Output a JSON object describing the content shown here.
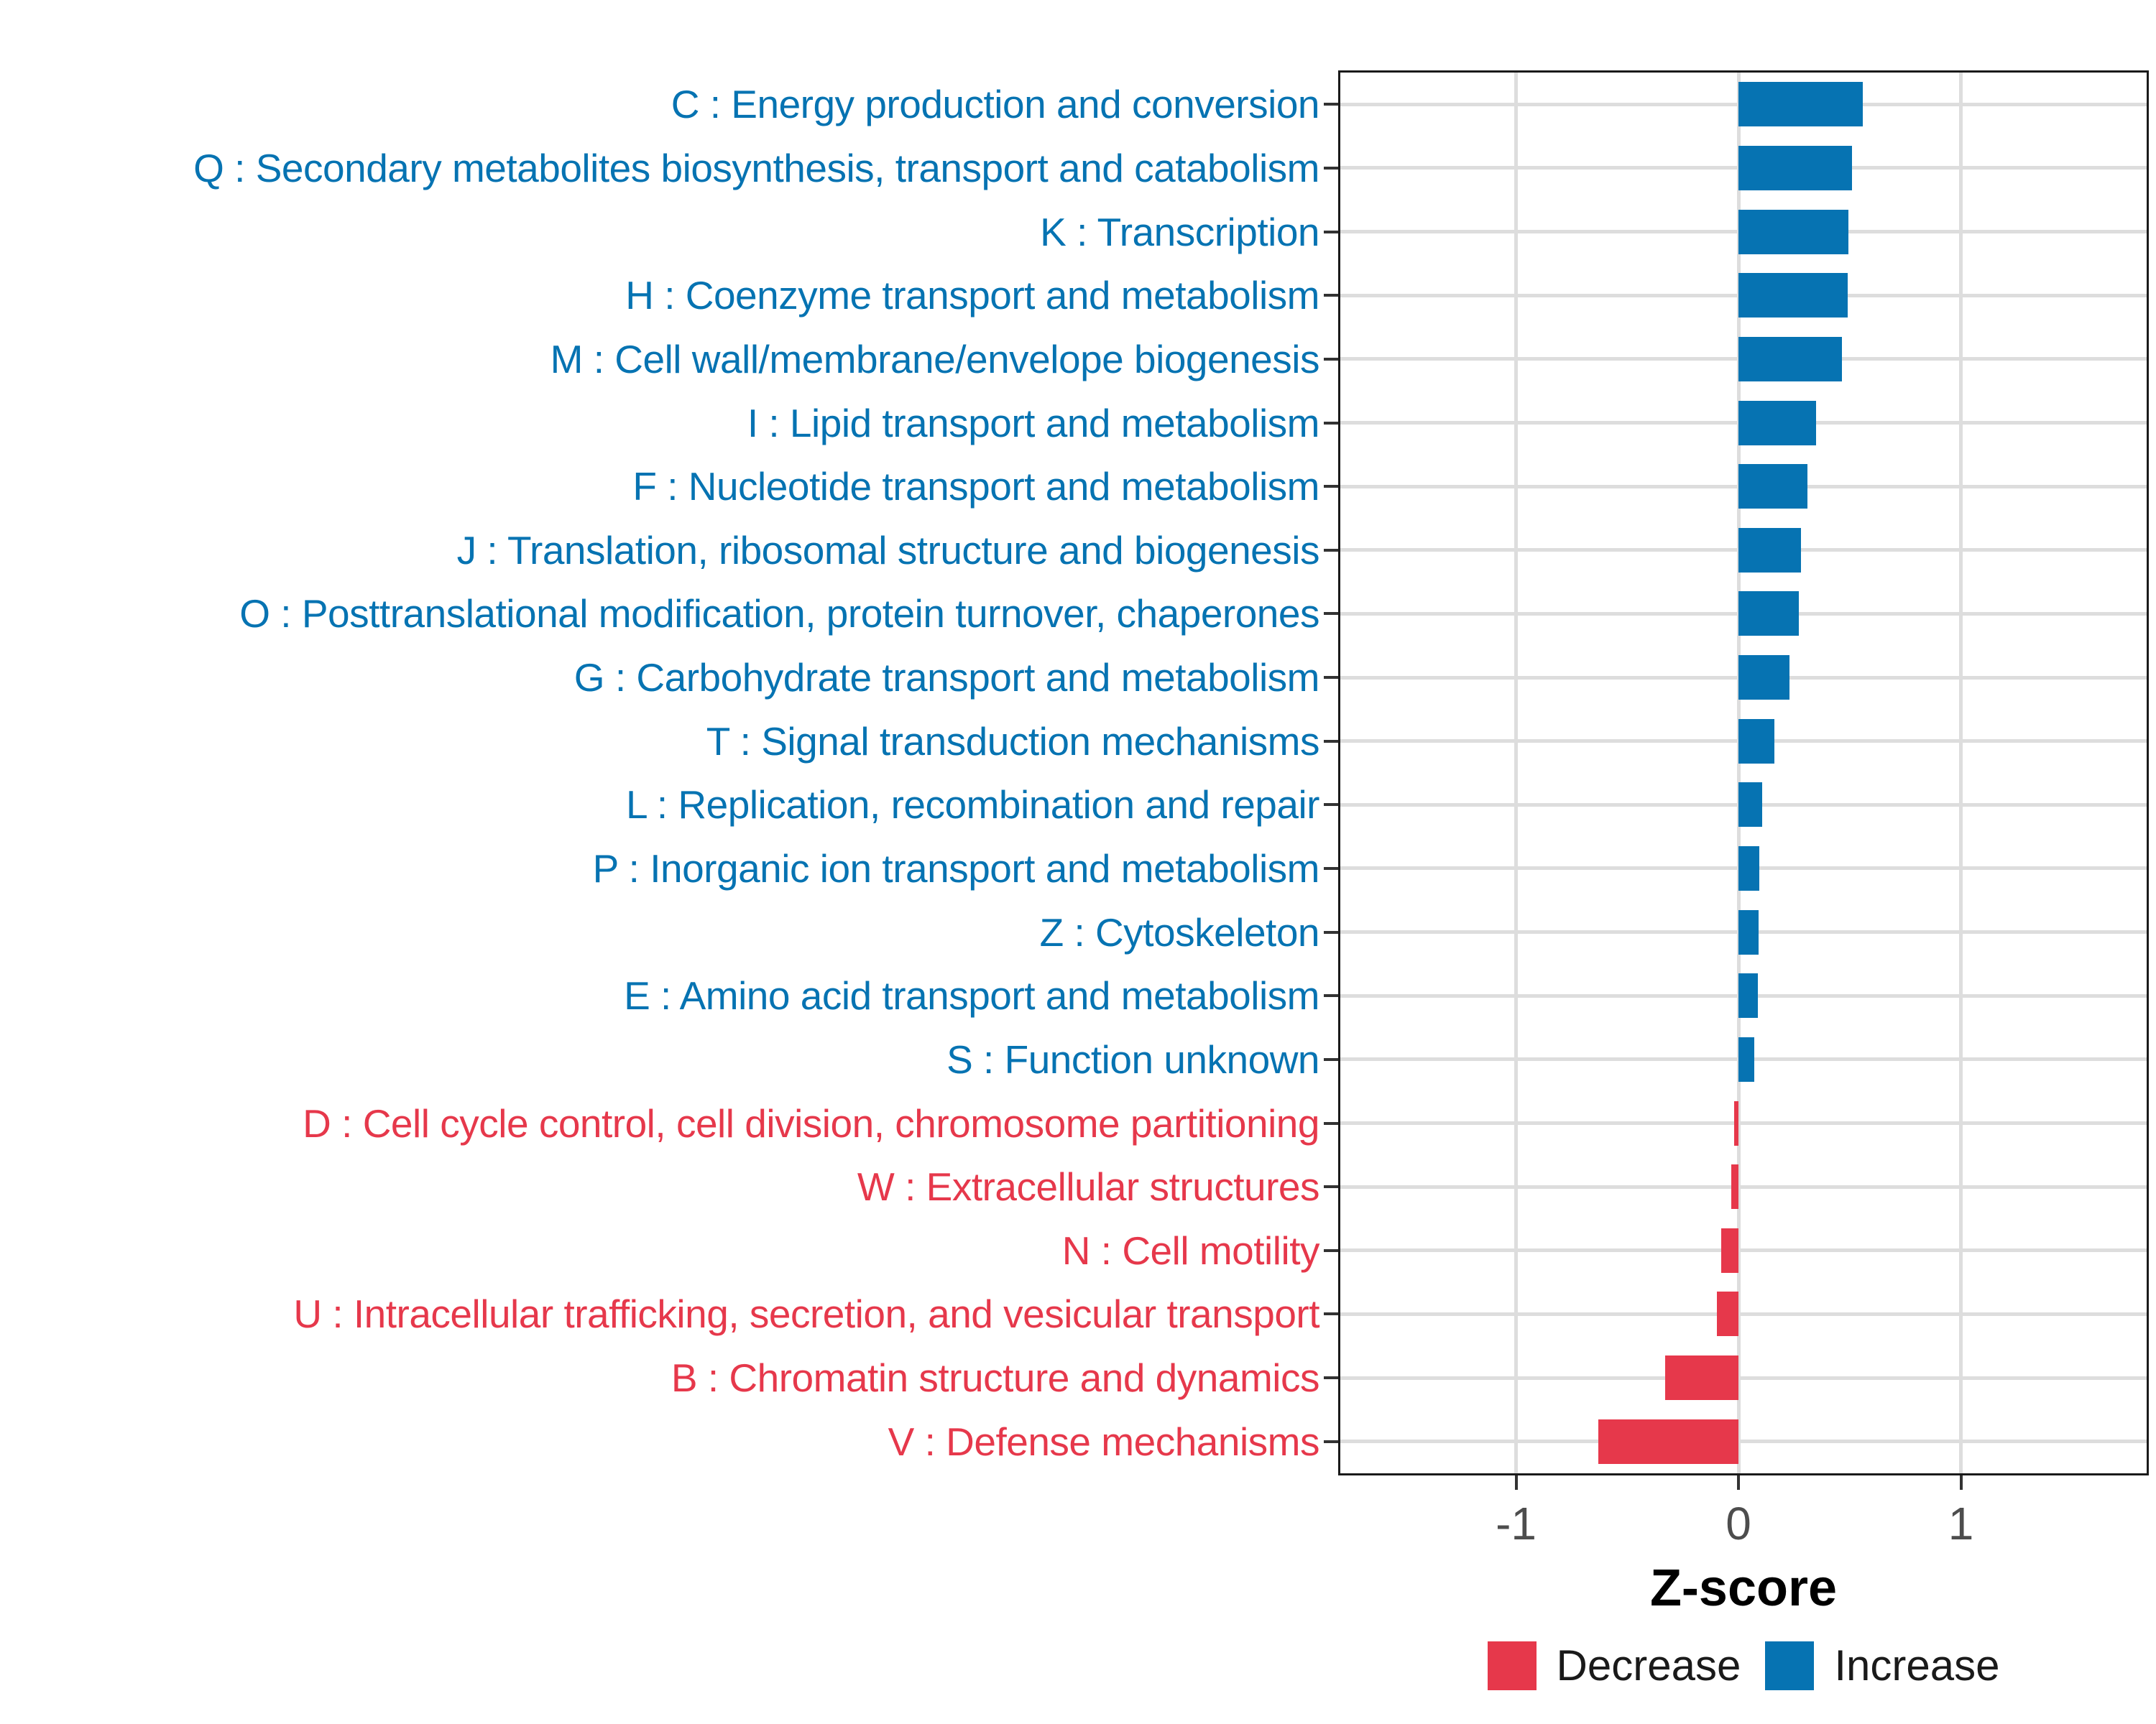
{
  "chart_data": {
    "type": "bar",
    "orientation": "horizontal",
    "title": "",
    "xlabel": "Z-score",
    "ylabel": "",
    "xlim": [
      -1.79,
      1.835
    ],
    "grid": "major",
    "legend_position": "bottom",
    "x_ticks": [
      {
        "label": "-1",
        "value": -1
      },
      {
        "label": "0",
        "value": 0
      },
      {
        "label": "1",
        "value": 1
      }
    ],
    "bars": [
      {
        "label": "C : Energy production and conversion",
        "value": 0.56,
        "group": "Increase"
      },
      {
        "label": "Q : Secondary metabolites biosynthesis, transport and catabolism",
        "value": 0.51,
        "group": "Increase"
      },
      {
        "label": "K : Transcription",
        "value": 0.495,
        "group": "Increase"
      },
      {
        "label": "H : Coenzyme transport and metabolism",
        "value": 0.49,
        "group": "Increase"
      },
      {
        "label": "M : Cell wall/membrane/envelope biogenesis",
        "value": 0.465,
        "group": "Increase"
      },
      {
        "label": "I : Lipid transport and metabolism",
        "value": 0.35,
        "group": "Increase"
      },
      {
        "label": "F : Nucleotide transport and metabolism",
        "value": 0.31,
        "group": "Increase"
      },
      {
        "label": "J : Translation, ribosomal structure and biogenesis",
        "value": 0.28,
        "group": "Increase"
      },
      {
        "label": "O : Posttranslational modification, protein turnover, chaperones",
        "value": 0.27,
        "group": "Increase"
      },
      {
        "label": "G : Carbohydrate transport and metabolism",
        "value": 0.23,
        "group": "Increase"
      },
      {
        "label": "T : Signal transduction mechanisms",
        "value": 0.16,
        "group": "Increase"
      },
      {
        "label": "L : Replication, recombination and repair",
        "value": 0.105,
        "group": "Increase"
      },
      {
        "label": "P : Inorganic ion transport and metabolism",
        "value": 0.095,
        "group": "Increase"
      },
      {
        "label": "Z : Cytoskeleton",
        "value": 0.09,
        "group": "Increase"
      },
      {
        "label": "E : Amino acid transport and metabolism",
        "value": 0.088,
        "group": "Increase"
      },
      {
        "label": "S : Function unknown",
        "value": 0.07,
        "group": "Increase"
      },
      {
        "label": "D : Cell cycle control, cell division, chromosome partitioning",
        "value": -0.02,
        "group": "Decrease"
      },
      {
        "label": "W : Extracellular structures",
        "value": -0.032,
        "group": "Decrease"
      },
      {
        "label": "N : Cell motility",
        "value": -0.077,
        "group": "Decrease"
      },
      {
        "label": "U : Intracellular trafficking, secretion, and vesicular transport",
        "value": -0.097,
        "group": "Decrease"
      },
      {
        "label": "B : Chromatin structure and dynamics",
        "value": -0.33,
        "group": "Decrease"
      },
      {
        "label": "V : Defense mechanisms",
        "value": -0.63,
        "group": "Decrease"
      }
    ]
  },
  "legend": {
    "items": [
      {
        "label": "Decrease",
        "key": "decrease"
      },
      {
        "label": "Increase",
        "key": "increase"
      }
    ]
  },
  "colors": {
    "increase": "#0673B2",
    "decrease": "#E6384B",
    "grid": "#DDDDDD",
    "tick_text": "#4D4D4D",
    "axis_line": "#1A1A1A",
    "background": "#FFFFFF"
  }
}
